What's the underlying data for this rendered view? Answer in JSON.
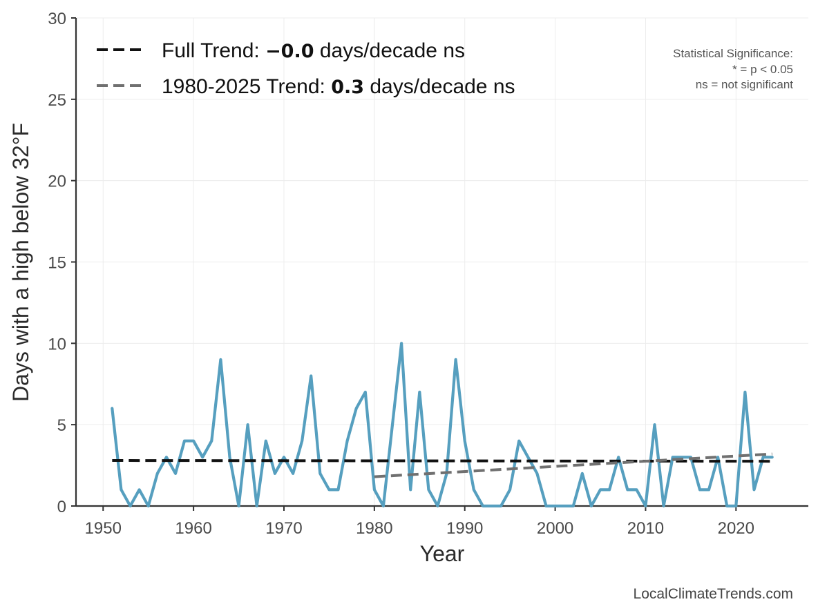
{
  "chart_data": {
    "type": "line",
    "xlabel": "Year",
    "ylabel": "Days with a high below 32°F",
    "xlim": [
      1947,
      2028
    ],
    "ylim": [
      0,
      30
    ],
    "x_ticks": [
      1950,
      1960,
      1970,
      1980,
      1990,
      2000,
      2010,
      2020
    ],
    "y_ticks": [
      0,
      5,
      10,
      15,
      20,
      25,
      30
    ],
    "grid": true,
    "series": [
      {
        "name": "Days with a high below 32°F",
        "color": "#569fbf",
        "x": [
          1951,
          1952,
          1953,
          1954,
          1955,
          1956,
          1957,
          1958,
          1959,
          1960,
          1961,
          1962,
          1963,
          1964,
          1965,
          1966,
          1967,
          1968,
          1969,
          1970,
          1971,
          1972,
          1973,
          1974,
          1975,
          1976,
          1977,
          1978,
          1979,
          1980,
          1981,
          1982,
          1983,
          1984,
          1985,
          1986,
          1987,
          1988,
          1989,
          1990,
          1991,
          1992,
          1993,
          1994,
          1995,
          1996,
          1997,
          1998,
          1999,
          2000,
          2001,
          2002,
          2003,
          2004,
          2005,
          2006,
          2007,
          2008,
          2009,
          2010,
          2011,
          2012,
          2013,
          2014,
          2015,
          2016,
          2017,
          2018,
          2019,
          2020,
          2021,
          2022,
          2023,
          2024
        ],
        "values": [
          6,
          1,
          0,
          1,
          0,
          2,
          3,
          2,
          4,
          4,
          3,
          4,
          9,
          3,
          0,
          5,
          0,
          4,
          2,
          3,
          2,
          4,
          8,
          2,
          1,
          1,
          4,
          6,
          7,
          1,
          0,
          5,
          10,
          1,
          7,
          1,
          0,
          2,
          9,
          4,
          1,
          0,
          0,
          0,
          1,
          4,
          3,
          2,
          0,
          0,
          0,
          0,
          2,
          0,
          1,
          1,
          3,
          1,
          1,
          0,
          5,
          0,
          3,
          3,
          3,
          1,
          1,
          3,
          0,
          0,
          7,
          1,
          3,
          3
        ]
      }
    ],
    "trends": [
      {
        "name": "Full Trend",
        "label_prefix": "Full Trend: ",
        "value_text": "−0.0",
        "label_suffix": " days/decade ns",
        "color": "#111111",
        "x": [
          1951,
          2024
        ],
        "values": [
          2.8,
          2.75
        ]
      },
      {
        "name": "1980-2025 Trend",
        "label_prefix": "1980-2025 Trend: ",
        "value_text": "0.3",
        "label_suffix": " days/decade ns",
        "color": "#707070",
        "x": [
          1980,
          2024
        ],
        "values": [
          1.8,
          3.2
        ]
      }
    ],
    "significance_note": [
      "Statistical Significance:",
      "* = p < 0.05",
      "ns = not significant"
    ],
    "credit": "LocalClimateTrends.com",
    "legend_position": "top-left"
  }
}
